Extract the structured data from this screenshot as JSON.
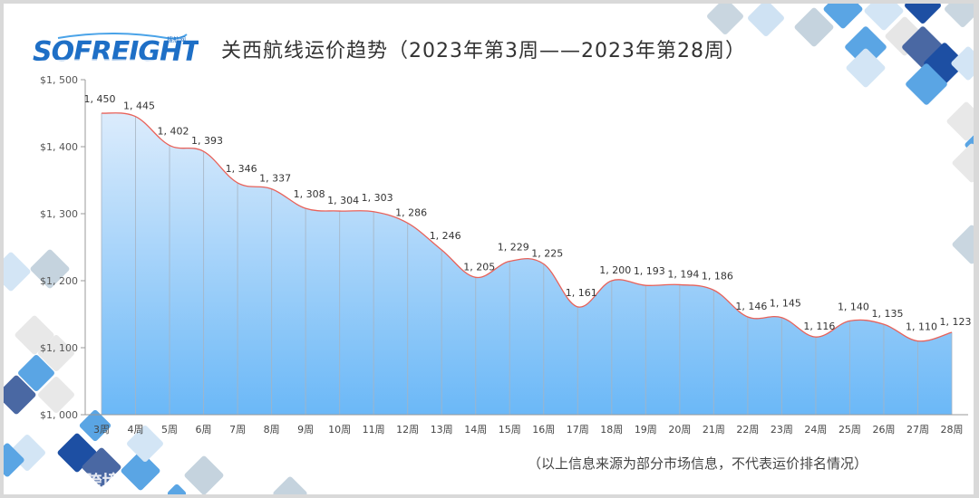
{
  "header": {
    "logo_text": "SOFREIGHT",
    "logo_sub": "搜航网",
    "title": "关西航线运价趋势（2023年第3周——2023年第28周）"
  },
  "footer": {
    "note": "（以上信息来源为部分市场信息，不代表运价排名情况）",
    "watermark": "大数跨境"
  },
  "colors": {
    "line": "#e8625a",
    "fill_top": "#dcecfc",
    "fill_bottom": "#6bb8f7",
    "grid_vertical": "#a7b4c2",
    "axis": "#999999",
    "logo": "#1e6fc6"
  },
  "chart_data": {
    "type": "area",
    "title": "关西航线运价趋势（2023年第3周——2023年第28周）",
    "xlabel": "",
    "ylabel": "",
    "categories": [
      "3周",
      "4周",
      "5周",
      "6周",
      "7周",
      "8周",
      "9周",
      "10周",
      "11周",
      "12周",
      "13周",
      "14周",
      "15周",
      "16周",
      "17周",
      "18周",
      "19周",
      "20周",
      "21周",
      "22周",
      "23周",
      "24周",
      "25周",
      "26周",
      "27周",
      "28周"
    ],
    "values": [
      1450,
      1445,
      1402,
      1393,
      1346,
      1337,
      1308,
      1304,
      1303,
      1286,
      1246,
      1205,
      1229,
      1225,
      1161,
      1200,
      1193,
      1194,
      1186,
      1146,
      1145,
      1116,
      1140,
      1135,
      1110,
      1123
    ],
    "data_labels": [
      "1, 450",
      "1, 445",
      "1, 402",
      "1, 393",
      "1, 346",
      "1, 337",
      "1, 308",
      "1, 304",
      "1, 303",
      "1, 286",
      "1, 246",
      "1, 205",
      "1, 229",
      "1, 225",
      "1, 161",
      "1, 200",
      "1, 193",
      "1, 194",
      "1, 186",
      "1, 146",
      "1, 145",
      "1, 116",
      "1, 140",
      "1, 135",
      "1, 110",
      "1, 123"
    ],
    "yticks": [
      1000,
      1100,
      1200,
      1300,
      1400,
      1500
    ],
    "ytick_labels": [
      "$1, 000",
      "$1, 100",
      "$1, 200",
      "$1, 300",
      "$1, 400",
      "$1, 500"
    ],
    "ylim": [
      1000,
      1500
    ],
    "grid": false,
    "legend": "none",
    "smooth": true
  }
}
